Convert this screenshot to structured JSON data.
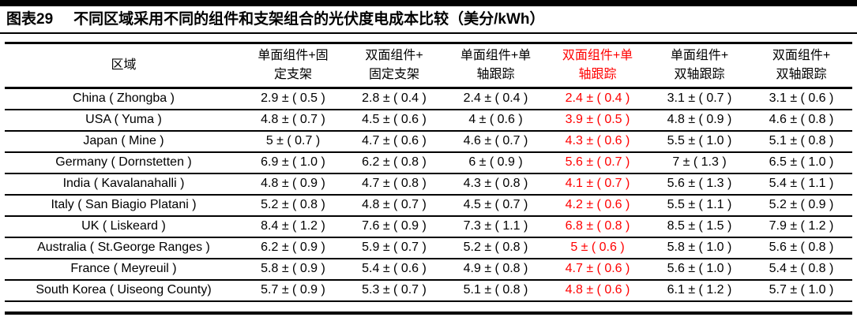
{
  "page": {
    "background": "#ffffff",
    "text_color": "#000000",
    "accent_red": "#ff0000"
  },
  "header": {
    "exhibit_label": "图表29",
    "title": "不同区域采用不同的组件和支架组合的光伏度电成本比较（美分/kWh）"
  },
  "table": {
    "region_header": "区域",
    "columns": [
      {
        "label": "单面组件+固\n定支架",
        "highlight": false
      },
      {
        "label": "双面组件+\n固定支架",
        "highlight": false
      },
      {
        "label": "单面组件+单\n轴跟踪",
        "highlight": false
      },
      {
        "label": "双面组件+单\n轴跟踪",
        "highlight": true
      },
      {
        "label": "单面组件+\n双轴跟踪",
        "highlight": false
      },
      {
        "label": "双面组件+\n双轴跟踪",
        "highlight": false
      }
    ],
    "rows": [
      {
        "region": "China ( Zhongba )",
        "values": [
          "2.9 ± ( 0.5 )",
          "2.8 ± ( 0.4 )",
          "2.4 ± ( 0.4 )",
          "2.4 ± ( 0.4 )",
          "3.1 ± ( 0.7 )",
          "3.1 ± ( 0.6 )"
        ]
      },
      {
        "region": "USA ( Yuma )",
        "values": [
          "4.8 ± ( 0.7 )",
          "4.5 ± ( 0.6 )",
          "4 ± ( 0.6 )",
          "3.9 ± ( 0.5 )",
          "4.8 ± ( 0.9 )",
          "4.6 ± ( 0.8 )"
        ]
      },
      {
        "region": "Japan ( Mine )",
        "values": [
          "5 ± ( 0.7 )",
          "4.7 ± ( 0.6 )",
          "4.6 ± ( 0.7 )",
          "4.3 ± ( 0.6 )",
          "5.5 ± ( 1.0 )",
          "5.1 ± ( 0.8 )"
        ]
      },
      {
        "region": "Germany ( Dornstetten )",
        "values": [
          "6.9 ± ( 1.0 )",
          "6.2 ± ( 0.8 )",
          "6 ± ( 0.9 )",
          "5.6 ± ( 0.7 )",
          "7 ± ( 1.3 )",
          "6.5 ± ( 1.0 )"
        ]
      },
      {
        "region": "India ( Kavalanahalli )",
        "values": [
          "4.8 ± ( 0.9 )",
          "4.7 ± ( 0.8 )",
          "4.3 ± ( 0.8 )",
          "4.1 ± ( 0.7 )",
          "5.6 ± ( 1.3 )",
          "5.4 ± ( 1.1 )"
        ]
      },
      {
        "region": "Italy ( San Biagio Platani )",
        "values": [
          "5.2 ± ( 0.8 )",
          "4.8 ± ( 0.7 )",
          "4.5 ± ( 0.7 )",
          "4.2 ± ( 0.6 )",
          "5.5 ± ( 1.1 )",
          "5.2 ± ( 0.9 )"
        ]
      },
      {
        "region": "UK ( Liskeard )",
        "values": [
          "8.4 ± ( 1.2 )",
          "7.6 ± ( 0.9 )",
          "7.3 ± ( 1.1 )",
          "6.8 ± ( 0.8 )",
          "8.5 ± ( 1.5 )",
          "7.9 ± ( 1.2 )"
        ]
      },
      {
        "region": "Australia ( St.George Ranges )",
        "values": [
          "6.2 ± ( 0.9 )",
          "5.9 ± ( 0.7 )",
          "5.2 ± ( 0.8 )",
          "5 ± ( 0.6 )",
          "5.8 ± ( 1.0 )",
          "5.6 ± ( 0.8 )"
        ]
      },
      {
        "region": "France ( Meyreuil )",
        "values": [
          "5.8 ± ( 0.9 )",
          "5.4 ± ( 0.6 )",
          "4.9 ± ( 0.8 )",
          "4.7 ± ( 0.6 )",
          "5.6 ± ( 1.0 )",
          "5.4 ± ( 0.8 )"
        ]
      },
      {
        "region": "South Korea ( Uiseong County)",
        "values": [
          "5.7 ± ( 0.9 )",
          "5.3 ± ( 0.7 )",
          "5.1 ± ( 0.8 )",
          "4.8 ± ( 0.6 )",
          "6.1 ± ( 1.2 )",
          "5.7 ± ( 1.0 )"
        ]
      }
    ]
  }
}
